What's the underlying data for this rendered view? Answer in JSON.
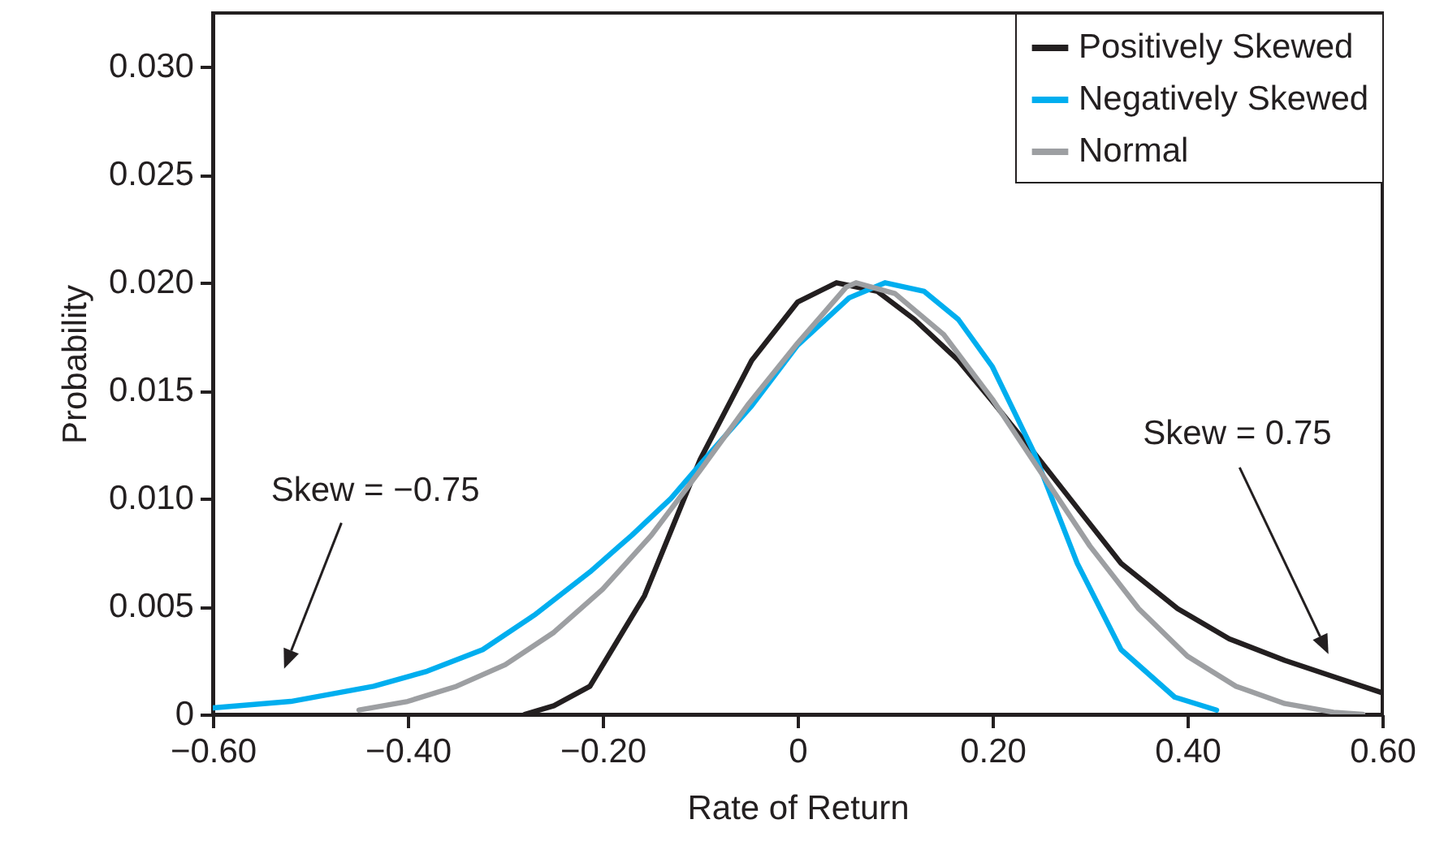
{
  "chart_data": {
    "type": "line",
    "xlabel": "Rate of Return",
    "ylabel": "Probability",
    "xlim": [
      -0.6,
      0.6
    ],
    "ylim": [
      0,
      0.0325
    ],
    "xticks": [
      {
        "value": -0.6,
        "label": "−0.60"
      },
      {
        "value": -0.4,
        "label": "−0.40"
      },
      {
        "value": -0.2,
        "label": "−0.20"
      },
      {
        "value": 0,
        "label": "0"
      },
      {
        "value": 0.2,
        "label": "0.20"
      },
      {
        "value": 0.4,
        "label": "0.40"
      },
      {
        "value": 0.6,
        "label": "0.60"
      }
    ],
    "yticks": [
      {
        "value": 0,
        "label": "0"
      },
      {
        "value": 0.005,
        "label": "0.005"
      },
      {
        "value": 0.01,
        "label": "0.010"
      },
      {
        "value": 0.015,
        "label": "0.015"
      },
      {
        "value": 0.02,
        "label": "0.020"
      },
      {
        "value": 0.025,
        "label": "0.025"
      },
      {
        "value": 0.03,
        "label": "0.030"
      }
    ],
    "grid": false,
    "legend": "top right",
    "marker": "none",
    "line_style": "solid",
    "series": [
      {
        "name": "Positively Skewed",
        "color": "#231f20",
        "x": [
          -0.28,
          -0.25,
          -0.213,
          -0.157,
          -0.1,
          -0.047,
          0,
          0.04,
          0.082,
          0.12,
          0.165,
          0.2,
          0.243,
          0.29,
          0.332,
          0.39,
          0.443,
          0.5,
          0.553,
          0.6
        ],
        "values": [
          0,
          0.0004,
          0.0013,
          0.0055,
          0.0118,
          0.0164,
          0.0191,
          0.02,
          0.0196,
          0.0183,
          0.0164,
          0.0145,
          0.0121,
          0.0094,
          0.007,
          0.0049,
          0.0035,
          0.0025,
          0.0017,
          0.001
        ]
      },
      {
        "name": "Negatively Skewed",
        "color": "#00aeef",
        "x": [
          -0.6,
          -0.52,
          -0.435,
          -0.38,
          -0.323,
          -0.27,
          -0.213,
          -0.17,
          -0.13,
          -0.09,
          -0.047,
          0,
          0.053,
          0.09,
          0.13,
          0.165,
          0.2,
          0.243,
          0.287,
          0.332,
          0.387,
          0.43
        ],
        "values": [
          0.0003,
          0.0006,
          0.0013,
          0.002,
          0.003,
          0.0046,
          0.0066,
          0.0083,
          0.01,
          0.0121,
          0.0143,
          0.0171,
          0.0193,
          0.02,
          0.0196,
          0.0183,
          0.0161,
          0.0121,
          0.007,
          0.003,
          0.0008,
          0.0002
        ]
      },
      {
        "name": "Normal",
        "color": "#9d9fa2",
        "x": [
          -0.45,
          -0.4,
          -0.35,
          -0.3,
          -0.25,
          -0.2,
          -0.15,
          -0.1,
          -0.05,
          0,
          0.05,
          0.06,
          0.1,
          0.15,
          0.2,
          0.25,
          0.3,
          0.35,
          0.4,
          0.45,
          0.5,
          0.55,
          0.58
        ],
        "values": [
          0.0002,
          0.0006,
          0.0013,
          0.0023,
          0.0038,
          0.0058,
          0.0083,
          0.0113,
          0.0144,
          0.0172,
          0.0198,
          0.02,
          0.0195,
          0.0176,
          0.0146,
          0.0112,
          0.0078,
          0.0049,
          0.0027,
          0.0013,
          0.0005,
          0.0001,
          0
        ]
      }
    ],
    "annotations": [
      "Skew = −0.75",
      "Skew = 0.75"
    ]
  }
}
